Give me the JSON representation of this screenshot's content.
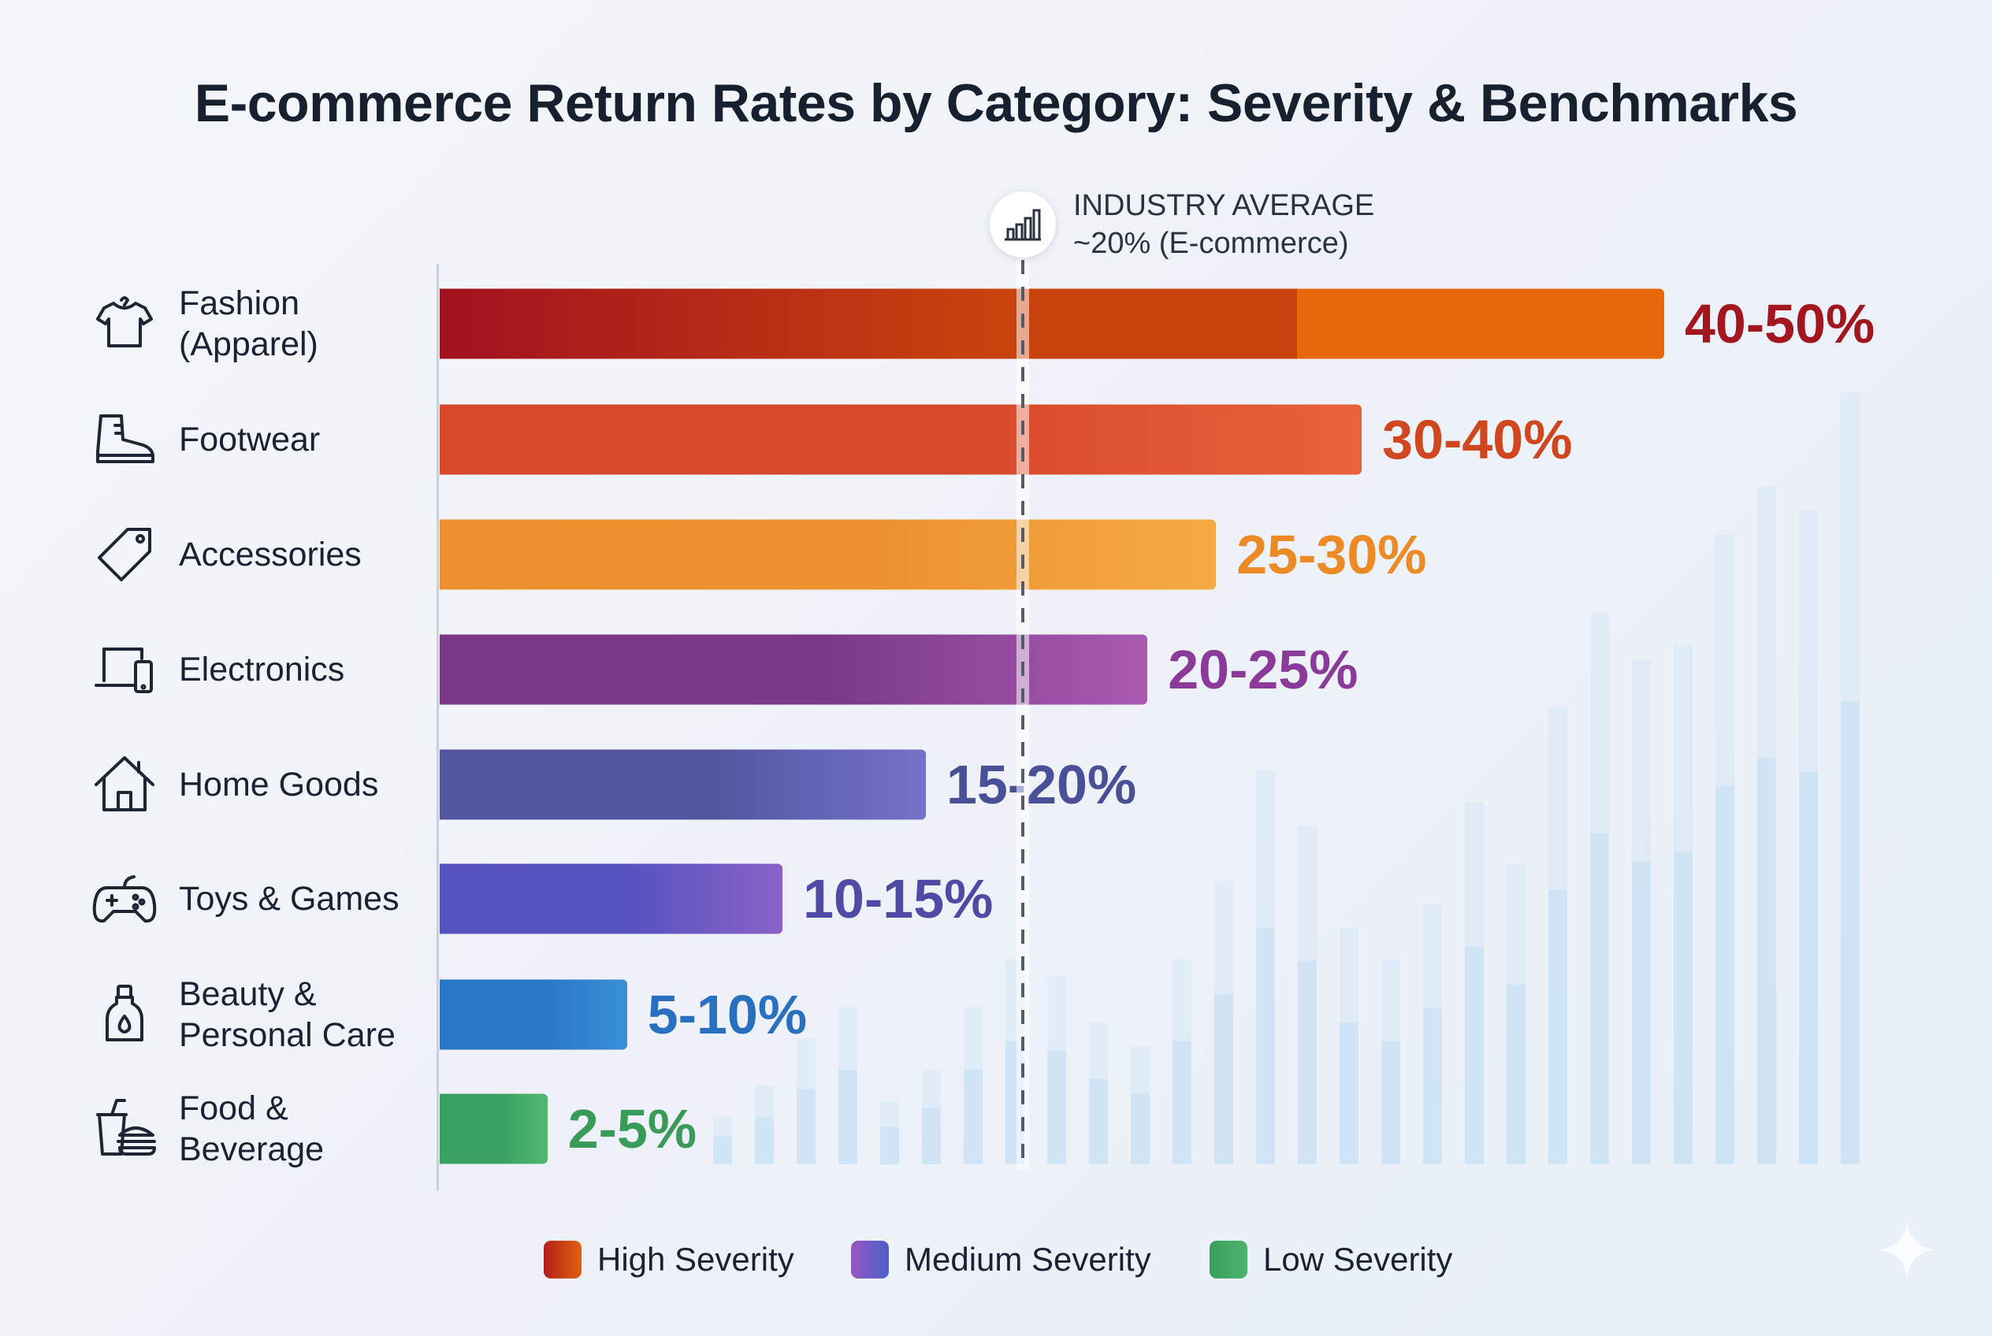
{
  "chart_data": {
    "type": "bar",
    "orientation": "horizontal",
    "title": "E-commerce Return Rates by Category: Severity & Benchmarks",
    "categories": [
      "Fashion (Apparel)",
      "Footwear",
      "Accessories",
      "Electronics",
      "Home Goods",
      "Toys & Games",
      "Beauty & Personal Care",
      "Food & Beverage"
    ],
    "category_lines": [
      [
        "Fashion",
        "(Apparel)"
      ],
      [
        "Footwear"
      ],
      [
        "Accessories"
      ],
      [
        "Electronics"
      ],
      [
        "Home Goods"
      ],
      [
        "Toys & Games"
      ],
      [
        "Beauty &",
        "Personal Care"
      ],
      [
        "Food &",
        "Beverage"
      ]
    ],
    "icons": [
      "shirt-icon",
      "boot-icon",
      "tag-icon",
      "laptop-phone-icon",
      "house-icon",
      "gamepad-icon",
      "bottle-icon",
      "food-drink-icon"
    ],
    "ranges": [
      [
        40,
        50
      ],
      [
        30,
        40
      ],
      [
        25,
        30
      ],
      [
        20,
        25
      ],
      [
        15,
        20
      ],
      [
        10,
        15
      ],
      [
        5,
        10
      ],
      [
        2,
        5
      ]
    ],
    "value_labels": [
      "40-50%",
      "30-40%",
      "25-30%",
      "20-25%",
      "15-20%",
      "10-15%",
      "5-10%",
      "2-5%"
    ],
    "severity": [
      "High",
      "High",
      "High",
      "Medium",
      "Medium",
      "Medium",
      "Low",
      "Low"
    ],
    "bar_colors": [
      [
        "#a0121f",
        "#c8420e",
        "#e6680a"
      ],
      [
        "#d6482a",
        "#e8623a"
      ],
      [
        "#ec9030",
        "#f6aa44"
      ],
      [
        "#7a3a88",
        "#aa5ab2"
      ],
      [
        "#52559f",
        "#7472c8"
      ],
      [
        "#5652c0",
        "#8a62c8"
      ],
      [
        "#2a76c6",
        "#3a90d8"
      ],
      [
        "#38a060",
        "#52b872"
      ]
    ],
    "label_colors": [
      "#a3161f",
      "#d0461e",
      "#ec8a25",
      "#8a3a98",
      "#4a5098",
      "#4f4aa6",
      "#2a70c0",
      "#3a9a58"
    ],
    "benchmark": {
      "title": "INDUSTRY AVERAGE",
      "subtitle": "~20% (E-commerce)",
      "value": 20,
      "icon": "bar-chart-icon"
    },
    "legend": [
      {
        "label": "High Severity",
        "colors": [
          "#b0201a",
          "#e35f10"
        ]
      },
      {
        "label": "Medium Severity",
        "colors": [
          "#9a55c0",
          "#4a60c8"
        ]
      },
      {
        "label": "Low Severity",
        "colors": [
          "#3a9e5e",
          "#4cb46c"
        ]
      }
    ],
    "legend_placement": "bottom",
    "grid": false,
    "xlabel": "",
    "ylabel": ""
  }
}
